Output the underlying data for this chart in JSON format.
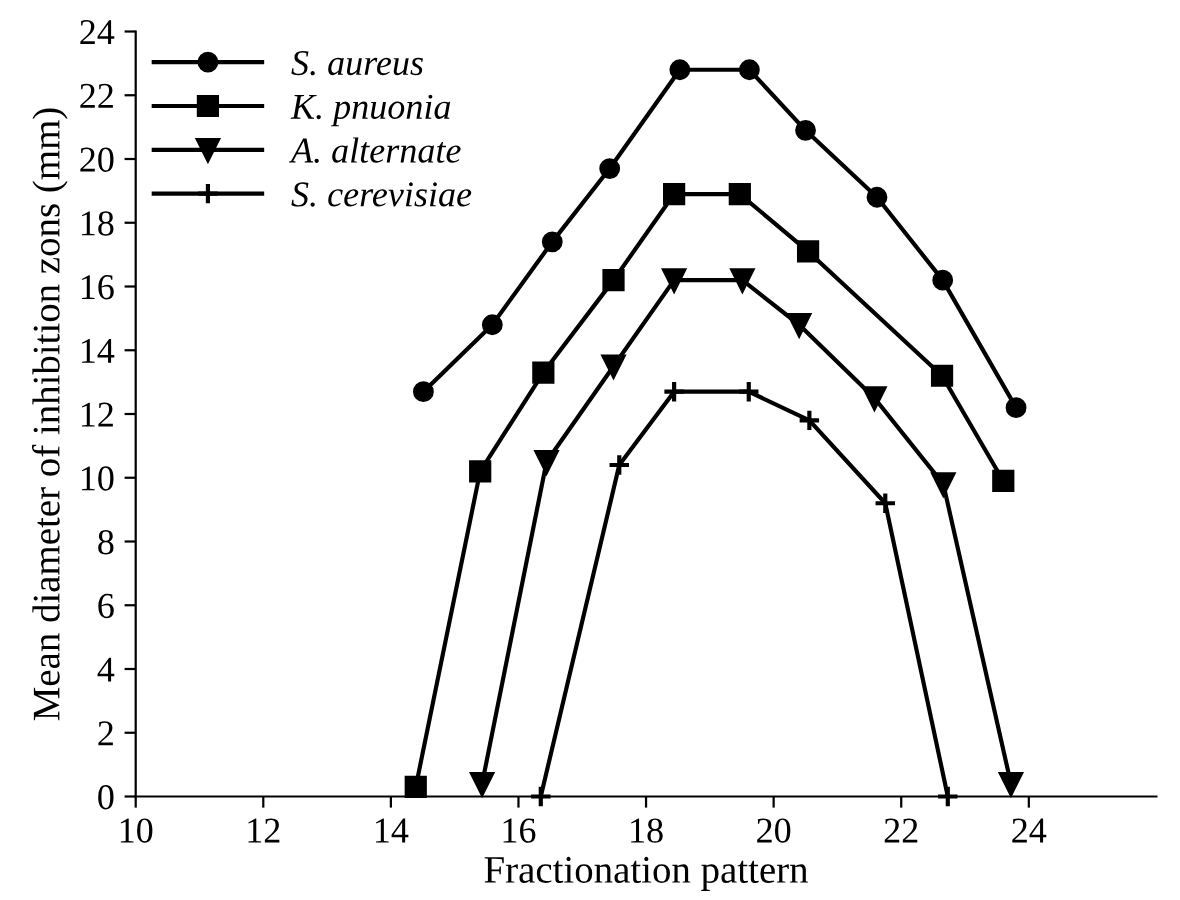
{
  "chart_data": {
    "type": "line",
    "xlabel": "Fractionation pattern",
    "ylabel": "Mean diameter of inhibition zons (mm)",
    "xlim": [
      10,
      26
    ],
    "xticks": [
      10,
      12,
      14,
      16,
      18,
      20,
      22,
      24
    ],
    "ylim": [
      0,
      24
    ],
    "yticks": [
      0,
      2,
      4,
      6,
      8,
      10,
      12,
      14,
      16,
      18,
      20,
      22,
      24
    ],
    "grid": false,
    "legend": "top left",
    "series": [
      {
        "name": "S. aureus",
        "color": "#000000",
        "marker": "circle",
        "x": [
          14.51,
          15.59,
          16.53,
          17.43,
          18.53,
          19.62,
          20.5,
          21.62,
          22.65,
          23.8
        ],
        "values": [
          12.7,
          14.8,
          17.4,
          19.7,
          22.8,
          22.8,
          20.9,
          18.8,
          16.2,
          12.2
        ]
      },
      {
        "name": "K. pnuonia",
        "color": "#000000",
        "marker": "square",
        "x": [
          14.39,
          15.4,
          16.39,
          17.49,
          18.44,
          19.47,
          20.54,
          22.64,
          23.6
        ],
        "values": [
          0.3,
          10.2,
          13.3,
          16.2,
          18.9,
          18.9,
          17.1,
          13.2,
          9.9
        ]
      },
      {
        "name": "A. alternate",
        "color": "#000000",
        "marker": "triangle",
        "x": [
          15.43,
          16.44,
          17.49,
          18.44,
          19.51,
          20.4,
          21.58,
          22.66,
          23.72
        ],
        "values": [
          0.4,
          10.5,
          13.5,
          16.2,
          16.2,
          14.8,
          12.5,
          9.8,
          0.4
        ]
      },
      {
        "name": "S. cerevisiae",
        "color": "#000000",
        "marker": "cross",
        "x": [
          16.35,
          17.58,
          18.44,
          19.61,
          20.56,
          21.75,
          22.73
        ],
        "values": [
          0,
          10.4,
          12.7,
          12.7,
          11.8,
          9.2,
          0
        ]
      }
    ]
  }
}
